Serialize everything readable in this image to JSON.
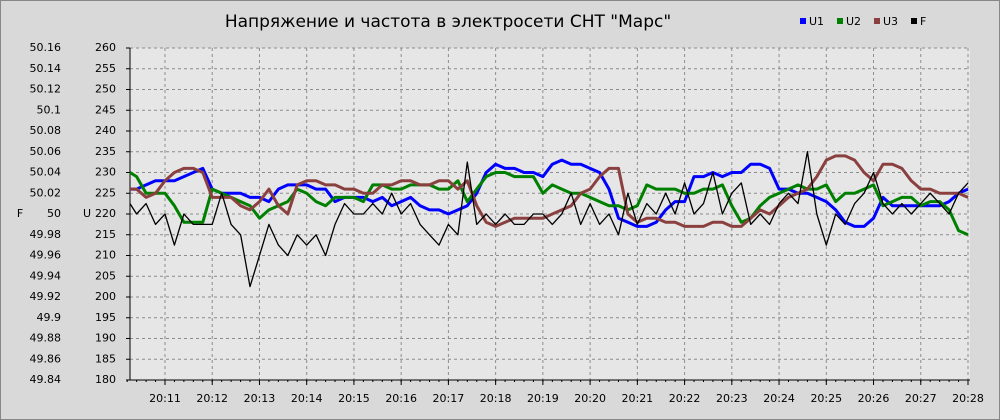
{
  "chart_data": {
    "type": "line",
    "title": "Напряжение и частота в электросети СНТ \"Марс\"",
    "y_label": "F",
    "y2_label": "U",
    "grid": true,
    "legend": "top-right",
    "categories": [
      null,
      null,
      null,
      null,
      "20:11",
      null,
      null,
      null,
      null,
      "20:12",
      null,
      null,
      null,
      null,
      "20:13",
      null,
      null,
      null,
      null,
      "20:14",
      null,
      null,
      null,
      null,
      "20:15",
      null,
      null,
      null,
      null,
      "20:16",
      null,
      null,
      null,
      null,
      "20:17",
      null,
      null,
      null,
      null,
      "20:18",
      null,
      null,
      null,
      null,
      "20:19",
      null,
      null,
      null,
      null,
      "20:20",
      null,
      null,
      null,
      null,
      "20:21",
      null,
      null,
      null,
      null,
      "20:22",
      null,
      null,
      null,
      null,
      "20:23",
      null,
      null,
      null,
      null,
      "20:24",
      null,
      null,
      null,
      null,
      "20:25",
      null,
      null,
      null,
      null,
      "20:26",
      null,
      null,
      null,
      null,
      "20:27",
      null,
      null,
      null,
      null,
      "20:28"
    ],
    "ylim": [
      49.84,
      50.16
    ],
    "yticks": [
      49.84,
      49.86,
      49.88,
      49.9,
      49.92,
      49.94,
      49.96,
      49.98,
      50,
      50.02,
      50.04,
      50.06,
      50.08,
      50.1,
      50.12,
      50.14,
      50.16
    ],
    "y2lim": [
      180,
      260
    ],
    "y2ticks": [
      180,
      185,
      190,
      195,
      200,
      205,
      210,
      215,
      220,
      225,
      230,
      235,
      240,
      245,
      250,
      255,
      260
    ],
    "series": [
      {
        "name": "U1",
        "color": "#0000ff",
        "axis": "y2",
        "values": [
          226,
          226,
          227,
          228,
          228,
          228,
          229,
          230,
          231,
          226,
          225,
          225,
          225,
          224,
          224,
          223,
          226,
          227,
          227,
          227,
          226,
          226,
          223,
          224,
          224,
          224,
          223,
          224,
          222,
          223,
          224,
          222,
          221,
          221,
          220,
          221,
          222,
          225,
          230,
          232,
          231,
          231,
          230,
          230,
          229,
          232,
          233,
          232,
          232,
          231,
          230,
          226,
          219,
          218,
          217,
          217,
          218,
          221,
          223,
          223,
          229,
          229,
          230,
          229,
          230,
          230,
          232,
          232,
          231,
          226,
          226,
          225,
          225,
          224,
          223,
          221,
          218,
          217,
          217,
          219,
          224,
          222,
          222,
          222,
          222,
          222,
          222,
          223,
          225,
          226
        ]
      },
      {
        "name": "U2",
        "color": "#008000",
        "axis": "y2",
        "values": [
          230,
          229,
          225,
          225,
          225,
          222,
          218,
          218,
          218,
          226,
          225,
          224,
          223,
          222,
          219,
          221,
          222,
          223,
          226,
          225,
          223,
          222,
          224,
          224,
          224,
          223,
          227,
          227,
          226,
          226,
          227,
          227,
          227,
          226,
          226,
          228,
          223,
          226,
          229,
          230,
          230,
          229,
          229,
          229,
          225,
          227,
          226,
          225,
          225,
          224,
          223,
          222,
          222,
          221,
          222,
          227,
          226,
          226,
          226,
          225,
          225,
          226,
          226,
          227,
          222,
          218,
          219,
          222,
          224,
          225,
          226,
          227,
          226,
          226,
          227,
          223,
          225,
          225,
          226,
          227,
          222,
          223,
          224,
          224,
          222,
          223,
          223,
          221,
          216,
          215
        ]
      },
      {
        "name": "U3",
        "color": "#8b4040",
        "axis": "y2",
        "values": [
          226,
          226,
          224,
          225,
          228,
          230,
          231,
          231,
          230,
          224,
          224,
          224,
          222,
          221,
          223,
          226,
          222,
          220,
          227,
          228,
          228,
          227,
          227,
          226,
          226,
          225,
          225,
          227,
          227,
          228,
          228,
          227,
          227,
          228,
          228,
          226,
          228,
          222,
          218,
          217,
          218,
          219,
          219,
          219,
          219,
          220,
          221,
          222,
          225,
          226,
          229,
          231,
          231,
          220,
          218,
          219,
          219,
          218,
          218,
          217,
          217,
          217,
          218,
          218,
          217,
          217,
          219,
          221,
          220,
          222,
          224,
          225,
          226,
          229,
          233,
          234,
          234,
          233,
          230,
          228,
          232,
          232,
          231,
          228,
          226,
          226,
          225,
          225,
          225,
          224
        ]
      },
      {
        "name": "F",
        "color": "#000000",
        "axis": "y",
        "values": [
          50.01,
          50.0,
          50.01,
          49.99,
          50.0,
          49.97,
          50.0,
          49.99,
          49.99,
          49.99,
          50.02,
          49.99,
          49.98,
          49.93,
          49.96,
          49.99,
          49.97,
          49.96,
          49.98,
          49.97,
          49.98,
          49.96,
          49.99,
          50.01,
          50.0,
          50.0,
          50.01,
          50.0,
          50.02,
          50.0,
          50.01,
          49.99,
          49.98,
          49.97,
          49.99,
          49.98,
          50.05,
          49.99,
          50.0,
          49.99,
          50.0,
          49.99,
          49.99,
          50.0,
          50.0,
          49.99,
          50.0,
          50.02,
          49.99,
          50.01,
          49.99,
          50.0,
          49.98,
          50.02,
          49.99,
          50.01,
          50.0,
          50.02,
          50.0,
          50.03,
          50.0,
          50.01,
          50.04,
          50.0,
          50.02,
          50.03,
          49.99,
          50.0,
          49.99,
          50.01,
          50.02,
          50.01,
          50.06,
          50.0,
          49.97,
          50.0,
          49.99,
          50.01,
          50.02,
          50.04,
          50.01,
          50.0,
          50.01,
          50.0,
          50.01,
          50.02,
          50.01,
          50.0,
          50.02,
          50.03
        ]
      }
    ]
  }
}
